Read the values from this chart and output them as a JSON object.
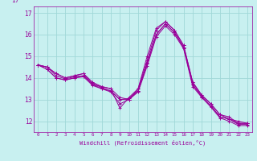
{
  "xlabel": "Windchill (Refroidissement éolien,°C)",
  "bg_color": "#c8f0f0",
  "grid_color": "#a0d8d8",
  "line_color": "#990099",
  "spine_color": "#990099",
  "xlim": [
    -0.5,
    23.5
  ],
  "ylim": [
    11.5,
    17.3
  ],
  "xticks": [
    0,
    1,
    2,
    3,
    4,
    5,
    6,
    7,
    8,
    9,
    10,
    11,
    12,
    13,
    14,
    15,
    16,
    17,
    18,
    19,
    20,
    21,
    22,
    23
  ],
  "yticks": [
    12,
    13,
    14,
    15,
    16,
    17
  ],
  "ytick_labels": [
    "12",
    "13",
    "14",
    "15",
    "16",
    "17"
  ],
  "top_label": "17",
  "lines": [
    {
      "x": [
        0,
        1,
        2,
        3,
        4,
        5,
        6,
        7,
        8,
        9,
        10,
        11,
        12,
        13,
        14,
        15,
        16,
        17,
        18,
        19,
        20,
        21,
        22,
        23
      ],
      "y": [
        14.6,
        14.5,
        14.2,
        14.0,
        14.1,
        14.2,
        13.8,
        13.6,
        13.5,
        13.1,
        13.0,
        13.5,
        15.0,
        16.3,
        16.6,
        16.2,
        15.5,
        13.8,
        13.2,
        12.8,
        12.3,
        12.2,
        11.9,
        11.9
      ]
    },
    {
      "x": [
        0,
        1,
        2,
        3,
        4,
        5,
        6,
        7,
        8,
        9,
        10,
        11,
        12,
        13,
        14,
        15,
        16,
        17,
        18,
        19,
        20,
        21,
        22,
        23
      ],
      "y": [
        14.6,
        14.5,
        14.2,
        14.0,
        14.1,
        14.2,
        13.7,
        13.6,
        13.5,
        12.6,
        13.1,
        13.5,
        14.8,
        16.2,
        16.6,
        16.2,
        15.5,
        13.8,
        13.2,
        12.8,
        12.3,
        12.1,
        12.0,
        11.9
      ]
    },
    {
      "x": [
        0,
        1,
        2,
        3,
        4,
        5,
        6,
        7,
        8,
        9,
        10,
        11,
        12,
        13,
        14,
        15,
        16,
        17,
        18,
        19,
        20,
        21,
        22,
        23
      ],
      "y": [
        14.6,
        14.5,
        14.1,
        13.95,
        14.05,
        14.1,
        13.75,
        13.55,
        13.4,
        13.0,
        13.0,
        13.4,
        14.7,
        16.0,
        16.5,
        16.1,
        15.4,
        13.7,
        13.15,
        12.7,
        12.2,
        12.1,
        11.85,
        11.85
      ]
    },
    {
      "x": [
        0,
        1,
        2,
        3,
        4,
        5,
        6,
        7,
        8,
        9,
        10,
        11,
        12,
        13,
        14,
        15,
        16,
        17,
        18,
        19,
        20,
        21,
        22,
        23
      ],
      "y": [
        14.6,
        14.4,
        14.0,
        13.9,
        14.0,
        14.1,
        13.7,
        13.5,
        13.4,
        13.0,
        13.05,
        13.4,
        14.65,
        16.0,
        16.5,
        16.1,
        15.4,
        13.7,
        13.1,
        12.7,
        12.2,
        12.1,
        11.9,
        11.9
      ]
    },
    {
      "x": [
        0,
        1,
        2,
        3,
        4,
        5,
        6,
        7,
        8,
        9,
        10,
        11,
        12,
        13,
        14,
        15,
        16,
        17,
        18,
        19,
        20,
        21,
        22,
        23
      ],
      "y": [
        14.6,
        14.4,
        14.0,
        13.9,
        14.0,
        14.05,
        13.65,
        13.5,
        13.35,
        12.8,
        13.0,
        13.35,
        14.55,
        15.9,
        16.4,
        16.0,
        15.35,
        13.6,
        13.1,
        12.65,
        12.15,
        12.0,
        11.8,
        11.8
      ]
    }
  ]
}
